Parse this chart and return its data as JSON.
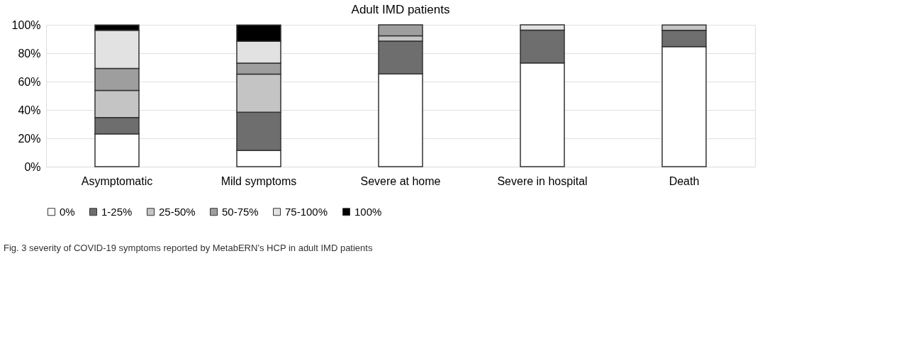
{
  "chart_data": {
    "type": "bar",
    "stacked": true,
    "title": "Adult IMD patients",
    "categories": [
      "Asymptomatic",
      "Mild symptoms",
      "Severe at home",
      "Severe in hospital",
      "Death"
    ],
    "series": [
      {
        "name": "0%",
        "color": "#ffffff",
        "values": [
          23.1,
          11.5,
          65.4,
          73.1,
          84.6
        ]
      },
      {
        "name": "1-25%",
        "color": "#6e6e6e",
        "values": [
          11.5,
          26.9,
          23.1,
          23.1,
          11.5
        ]
      },
      {
        "name": "25-50%",
        "color": "#c4c4c4",
        "values": [
          19.2,
          26.9,
          3.8,
          null,
          3.8
        ]
      },
      {
        "name": "50-75%",
        "color": "#9e9e9e",
        "values": [
          15.4,
          7.7,
          7.7,
          null,
          null
        ]
      },
      {
        "name": "75-100%",
        "color": "#e2e2e2",
        "values": [
          26.9,
          15.4,
          null,
          3.8,
          null
        ]
      },
      {
        "name": "100%",
        "color": "#000000",
        "values": [
          3.8,
          11.5,
          null,
          null,
          null
        ]
      }
    ],
    "ylim": [
      0,
      100
    ],
    "yticks": [
      {
        "value": 0,
        "label": "0%"
      },
      {
        "value": 20,
        "label": "20%"
      },
      {
        "value": 40,
        "label": "40%"
      },
      {
        "value": 60,
        "label": "60%"
      },
      {
        "value": 80,
        "label": "80%"
      },
      {
        "value": 100,
        "label": "100%"
      }
    ],
    "grid": "y",
    "legend": "bottom",
    "annotations": [
      "Fig. 3 severity of COVID-19 symptoms reported by MetabERN’s HCP in adult IMD patients"
    ]
  }
}
